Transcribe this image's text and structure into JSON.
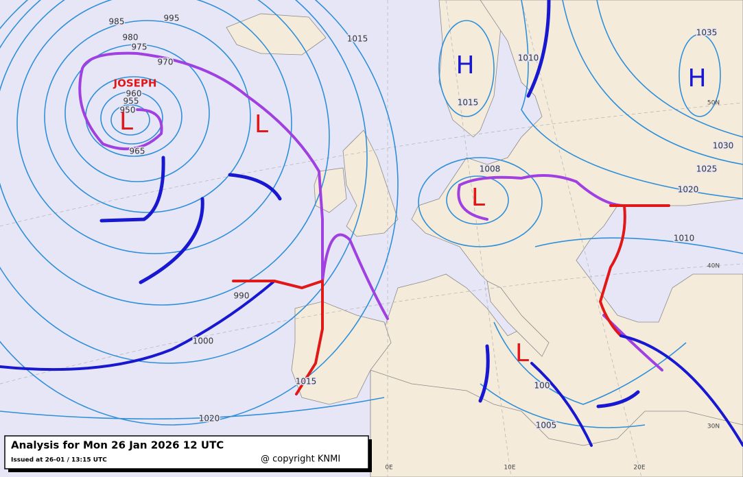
{
  "map": {
    "title": "Analysis for Mon 26 Jan 2026 12 UTC",
    "issued": "Issued at 26-01 / 13:15 UTC",
    "copyright": "@ copyright KNMI",
    "storm_name": "JOSEPH",
    "centers": [
      "H",
      "H",
      "L",
      "L",
      "L",
      "L"
    ],
    "isobar_labels": [
      "995",
      "985",
      "980",
      "975",
      "970",
      "960",
      "955",
      "950",
      "965",
      "1015",
      "1010",
      "1015",
      "1035",
      "1030",
      "1025",
      "1020",
      "1008",
      "1010",
      "990",
      "1000",
      "1015",
      "1020",
      "100",
      "1005"
    ],
    "grid_labels": [
      "50N",
      "40N",
      "30N",
      "0E",
      "10E",
      "20E"
    ]
  }
}
